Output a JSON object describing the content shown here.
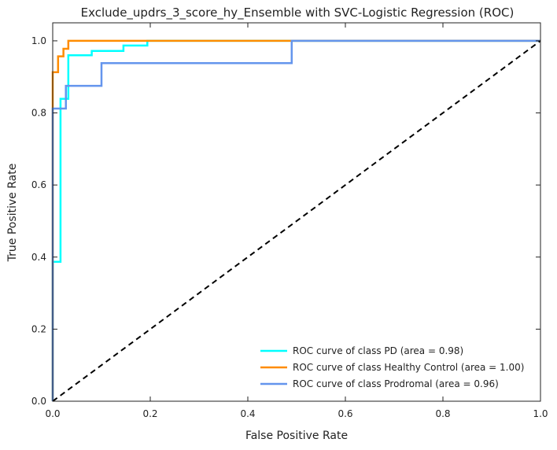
{
  "chart_data": {
    "type": "line",
    "title": "Exclude_updrs_3_score_hy_Ensemble with SVC-Logistic Regression (ROC)",
    "xlabel": "False Positive Rate",
    "ylabel": "True Positive Rate",
    "xlim": [
      0.0,
      1.0
    ],
    "ylim": [
      0.0,
      1.05
    ],
    "xticks": [
      "0.0",
      "0.2",
      "0.4",
      "0.6",
      "0.8",
      "1.0"
    ],
    "yticks": [
      "0.0",
      "0.2",
      "0.4",
      "0.6",
      "0.8",
      "1.0"
    ],
    "grid": false,
    "legend_position": "lower-right",
    "series": [
      {
        "name": "ROC curve of class PD (area = 0.98)",
        "color": "#00ffff",
        "x": [
          0.0,
          0.0,
          0.0,
          0.016,
          0.016,
          0.032,
          0.032,
          0.08,
          0.08,
          0.145,
          0.145,
          0.194,
          0.194,
          1.0
        ],
        "y": [
          0.0,
          0.387,
          0.387,
          0.387,
          0.839,
          0.839,
          0.96,
          0.96,
          0.972,
          0.972,
          0.987,
          0.987,
          1.0,
          1.0
        ]
      },
      {
        "name": "ROC curve of class Healthy Control (area = 1.00)",
        "color": "#ff8c00",
        "x": [
          0.0,
          0.0,
          0.0,
          0.0,
          0.011,
          0.011,
          0.022,
          0.022,
          0.032,
          0.032,
          1.0
        ],
        "y": [
          0.0,
          0.8,
          0.8,
          0.913,
          0.913,
          0.957,
          0.957,
          0.978,
          0.978,
          1.0,
          1.0
        ]
      },
      {
        "name": "ROC curve of class Prodromal (area = 0.96)",
        "color": "#6495ed",
        "x": [
          0.0,
          0.0,
          0.0,
          0.0,
          0.027,
          0.027,
          0.1,
          0.1,
          0.49,
          0.49,
          1.0
        ],
        "y": [
          0.0,
          0.061,
          0.061,
          0.812,
          0.812,
          0.875,
          0.875,
          0.938,
          0.938,
          1.0,
          1.0
        ]
      },
      {
        "color": "#000000",
        "dashed": true,
        "x": [
          0.0,
          1.0
        ],
        "y": [
          0.0,
          1.0
        ]
      }
    ]
  }
}
